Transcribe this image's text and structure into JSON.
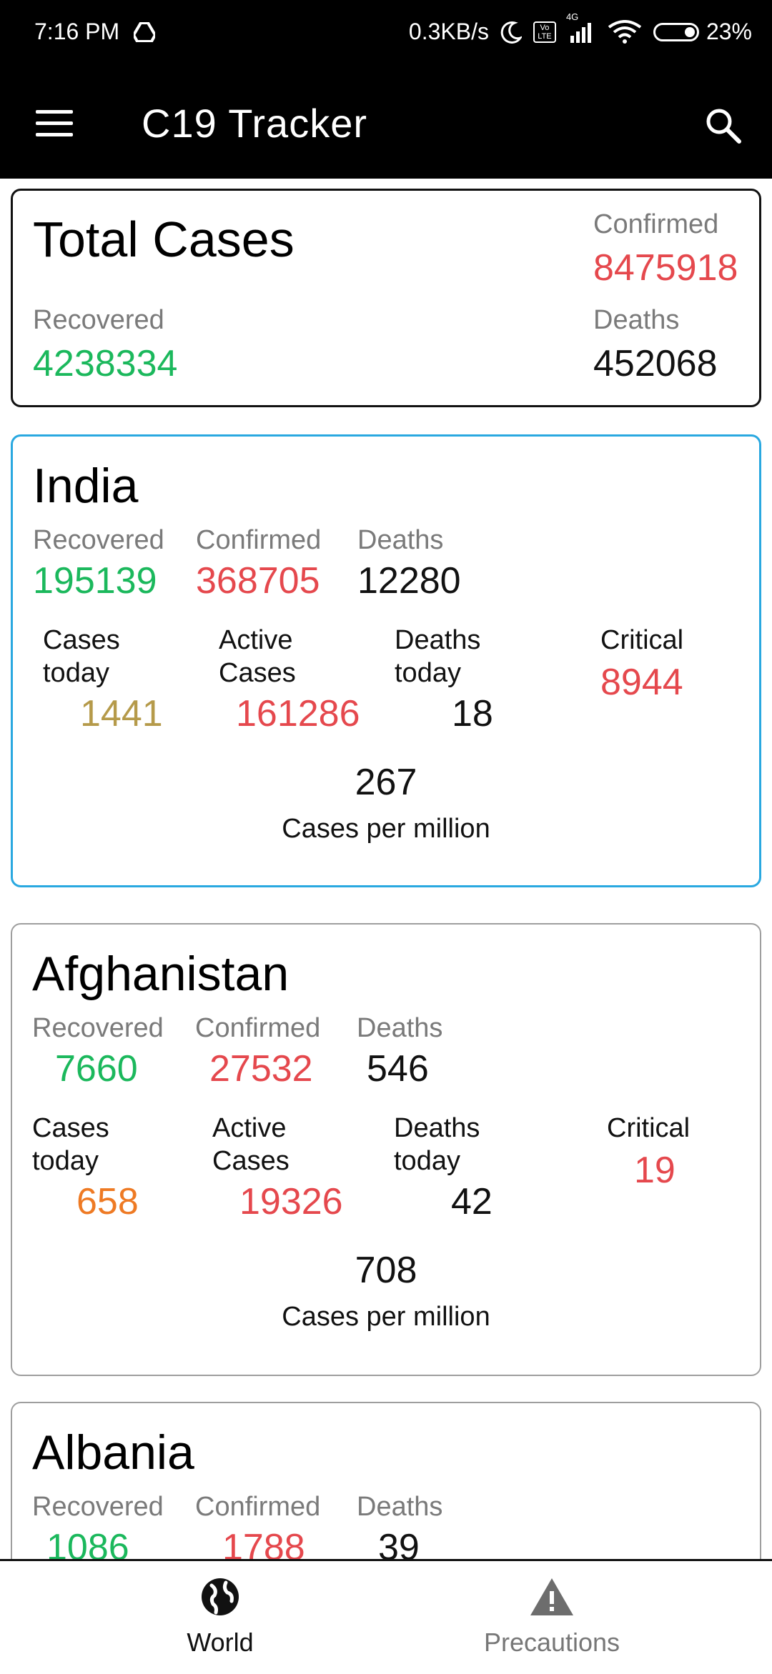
{
  "status_bar": {
    "time": "7:16 PM",
    "network_speed": "0.3KB/s",
    "battery": "23%",
    "volte": "Vo LTE",
    "signal_type": "4G"
  },
  "app_bar": {
    "title": "C19 Tracker"
  },
  "total": {
    "title": "Total Cases",
    "confirmed_label": "Confirmed",
    "confirmed": "8475918",
    "recovered_label": "Recovered",
    "recovered": "4238334",
    "deaths_label": "Deaths",
    "deaths": "452068"
  },
  "countries": [
    {
      "name": "India",
      "recovered_label": "Recovered",
      "recovered": "195139",
      "confirmed_label": "Confirmed",
      "confirmed": "368705",
      "deaths_label": "Deaths",
      "deaths": "12280",
      "cases_today_label1": "Cases",
      "cases_today_label2": "today",
      "cases_today": "1441",
      "active_label1": "Active",
      "active_label2": "Cases",
      "active": "161286",
      "deaths_today_label1": "Deaths",
      "deaths_today_label2": "today",
      "deaths_today": "18",
      "critical_label": "Critical",
      "critical": "8944",
      "per_million": "267",
      "per_million_label": "Cases per million"
    },
    {
      "name": "Afghanistan",
      "recovered_label": "Recovered",
      "recovered": "7660",
      "confirmed_label": "Confirmed",
      "confirmed": "27532",
      "deaths_label": "Deaths",
      "deaths": "546",
      "cases_today_label1": "Cases",
      "cases_today_label2": "today",
      "cases_today": "658",
      "active_label1": "Active",
      "active_label2": "Cases",
      "active": "19326",
      "deaths_today_label1": "Deaths",
      "deaths_today_label2": "today",
      "deaths_today": "42",
      "critical_label": "Critical",
      "critical": "19",
      "per_million": "708",
      "per_million_label": "Cases per million"
    },
    {
      "name": "Albania",
      "recovered_label": "Recovered",
      "recovered": "1086",
      "confirmed_label": "Confirmed",
      "confirmed": "1788",
      "deaths_label": "Deaths",
      "deaths": "39"
    }
  ],
  "bottom_nav": {
    "world_label": "World",
    "precautions_label": "Precautions",
    "world_icon": "globe-icon",
    "precautions_icon": "warning-icon"
  }
}
